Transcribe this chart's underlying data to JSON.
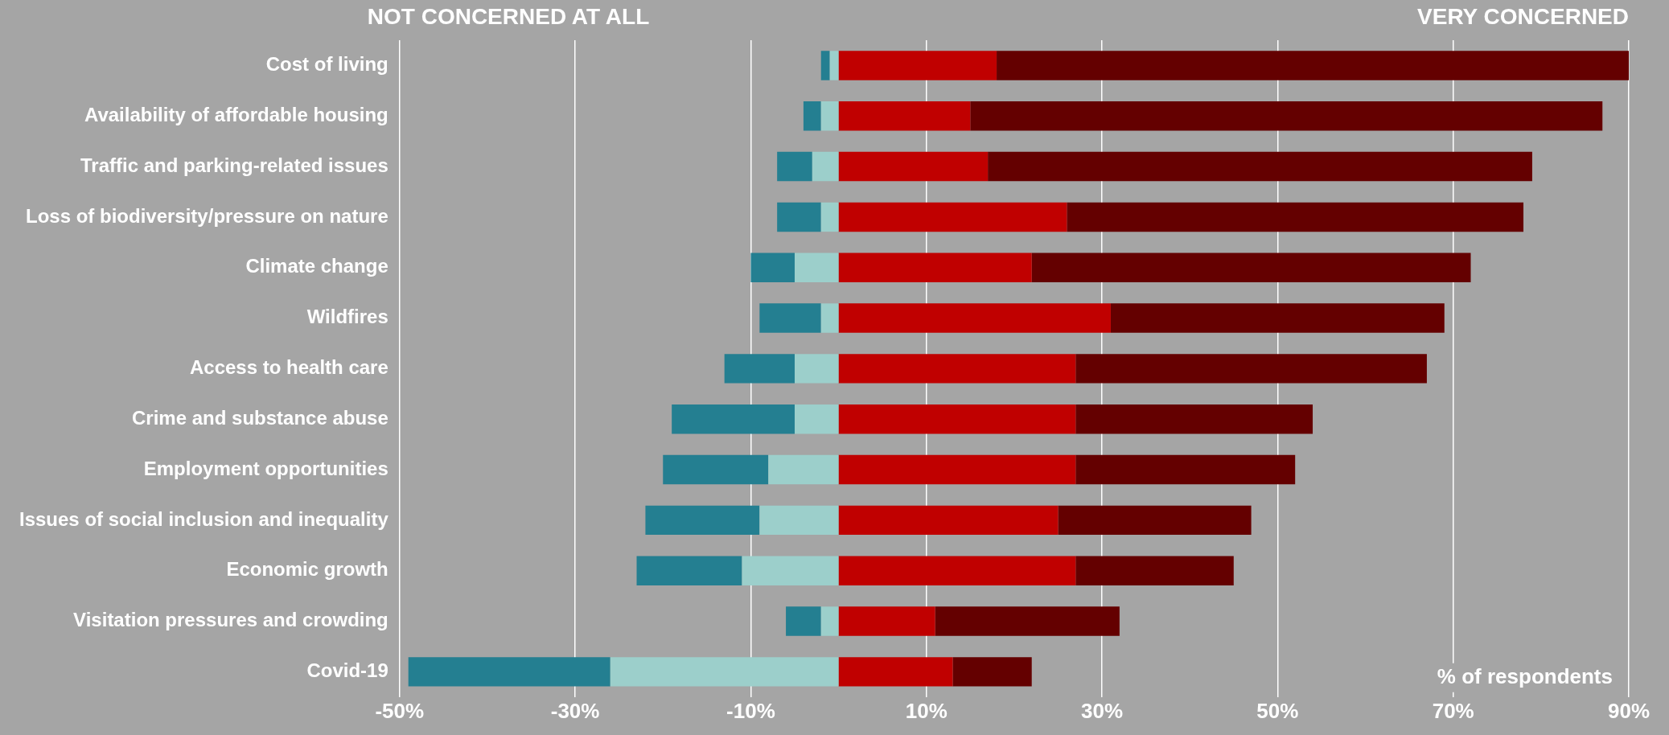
{
  "chart_data": {
    "type": "bar",
    "orientation": "horizontal",
    "stacked": true,
    "categories": [
      "Cost of living",
      "Availability of affordable housing",
      "Traffic and parking-related issues",
      "Loss of biodiversity/pressure on nature",
      "Climate change",
      "Wildfires",
      "Access to health care",
      "Crime and substance abuse",
      "Employment opportunities",
      "Issues of social inclusion and inequality",
      "Economic growth",
      "Visitation pressures and crowding",
      "Covid-19"
    ],
    "series": [
      {
        "color": "#9ccfcb",
        "values": [
          -1,
          -2,
          -3,
          -2,
          -5,
          -2,
          -5,
          -5,
          -8,
          -9,
          -11,
          -2,
          -26
        ]
      },
      {
        "color": "#247f91",
        "values": [
          -1,
          -2,
          -4,
          -5,
          -5,
          -7,
          -8,
          -14,
          -12,
          -13,
          -12,
          -4,
          -23
        ]
      },
      {
        "color": "#c00000",
        "values": [
          18,
          15,
          17,
          26,
          22,
          31,
          27,
          27,
          27,
          25,
          27,
          11,
          13
        ]
      },
      {
        "color": "#640000",
        "values": [
          72,
          72,
          62,
          52,
          50,
          38,
          40,
          27,
          25,
          22,
          18,
          21,
          9
        ]
      }
    ],
    "xlim": [
      -50,
      90
    ],
    "xticks": [
      {
        "value": -50,
        "label": "-50%"
      },
      {
        "value": -30,
        "label": "-30%"
      },
      {
        "value": -10,
        "label": "-10%"
      },
      {
        "value": 10,
        "label": "10%"
      },
      {
        "value": 30,
        "label": "30%"
      },
      {
        "value": 50,
        "label": "50%"
      },
      {
        "value": 70,
        "label": "70%"
      },
      {
        "value": 90,
        "label": "90%"
      }
    ],
    "xlabel": "% of respondents",
    "annotations": [
      "NOT CONCERNED AT ALL",
      "VERY CONCERNED"
    ],
    "grid": "x",
    "legend": false
  }
}
